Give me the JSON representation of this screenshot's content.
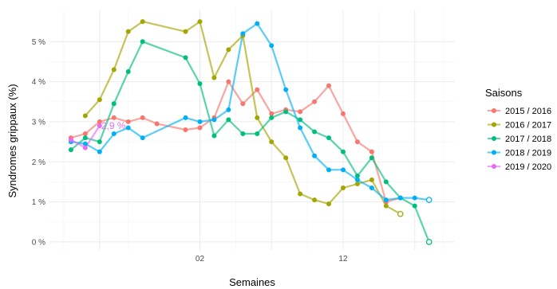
{
  "chart_data": {
    "type": "line",
    "title": "",
    "xlabel": "Semaines",
    "ylabel": "Syndromes grippaux (%)",
    "x_ticks": [
      {
        "value": 2,
        "label": "02"
      },
      {
        "value": 12,
        "label": "12"
      }
    ],
    "x_range": [
      45.5,
      19.8
    ],
    "ylim": [
      -0.2,
      5.8
    ],
    "y_ticks": [
      {
        "value": 0,
        "label": "0 %"
      },
      {
        "value": 1,
        "label": "1 %"
      },
      {
        "value": 2,
        "label": "2 %"
      },
      {
        "value": 3,
        "label": "3 %"
      },
      {
        "value": 4,
        "label": "4 %"
      },
      {
        "value": 5,
        "label": "5 %"
      }
    ],
    "grid": true,
    "legend": {
      "title": "Saisons",
      "position": "right"
    },
    "series": [
      {
        "name": "2015 / 2016",
        "color": "#f8766d",
        "x": [
          47,
          48,
          49,
          50,
          51,
          52,
          53,
          1,
          2,
          3,
          4,
          5,
          6,
          7,
          8,
          9,
          10,
          11,
          12,
          13,
          14,
          15,
          16
        ],
        "y": [
          2.6,
          2.7,
          3.0,
          3.1,
          3.0,
          3.1,
          2.95,
          2.8,
          2.85,
          3.1,
          4.0,
          3.45,
          3.8,
          3.2,
          3.3,
          3.25,
          3.5,
          3.9,
          3.2,
          2.5,
          2.25,
          1.0,
          1.1
        ],
        "open_last": false
      },
      {
        "name": "2016 / 2017",
        "color": "#a3a500",
        "x": [
          48,
          49,
          50,
          51,
          52,
          1,
          2,
          3,
          4,
          5,
          6,
          7,
          8,
          9,
          10,
          11,
          12,
          13,
          14,
          15,
          16
        ],
        "y": [
          3.15,
          3.55,
          4.3,
          5.25,
          5.5,
          5.25,
          5.5,
          4.1,
          4.8,
          5.15,
          3.1,
          2.5,
          2.1,
          1.2,
          1.05,
          0.95,
          1.35,
          1.45,
          1.55,
          0.9,
          0.7
        ],
        "open_last": true
      },
      {
        "name": "2017 / 2018",
        "color": "#00bf7d",
        "x": [
          47,
          48,
          49,
          50,
          51,
          52,
          1,
          2,
          3,
          4,
          5,
          6,
          7,
          8,
          9,
          10,
          11,
          12,
          13,
          14,
          15,
          16,
          17,
          18
        ],
        "y": [
          2.3,
          2.6,
          2.5,
          3.45,
          4.25,
          5.0,
          4.6,
          3.95,
          2.65,
          3.05,
          2.7,
          2.7,
          3.1,
          3.25,
          3.05,
          2.75,
          2.6,
          2.25,
          1.65,
          2.1,
          1.5,
          1.1,
          0.9,
          0.0
        ],
        "open_last": true
      },
      {
        "name": "2018 / 2019",
        "color": "#00b0f6",
        "x": [
          47,
          48,
          49,
          50,
          51,
          52,
          1,
          2,
          3,
          4,
          5,
          6,
          7,
          8,
          9,
          10,
          11,
          12,
          13,
          14,
          15,
          16,
          17,
          18
        ],
        "y": [
          2.5,
          2.45,
          2.25,
          2.7,
          2.85,
          2.6,
          3.1,
          3.0,
          3.05,
          3.3,
          5.2,
          5.45,
          4.9,
          3.8,
          2.85,
          2.15,
          1.8,
          1.8,
          1.55,
          1.35,
          1.05,
          1.1,
          1.1,
          1.05
        ],
        "open_last": true
      },
      {
        "name": "2019 / 2020",
        "color": "#e76bf3",
        "x": [
          47,
          48,
          49
        ],
        "y": [
          2.55,
          2.35,
          2.9
        ],
        "open_last": false
      }
    ],
    "annotations": [
      {
        "text": "2,9 %",
        "x": 49,
        "y": 2.9,
        "color": "#e76bf3"
      }
    ]
  }
}
